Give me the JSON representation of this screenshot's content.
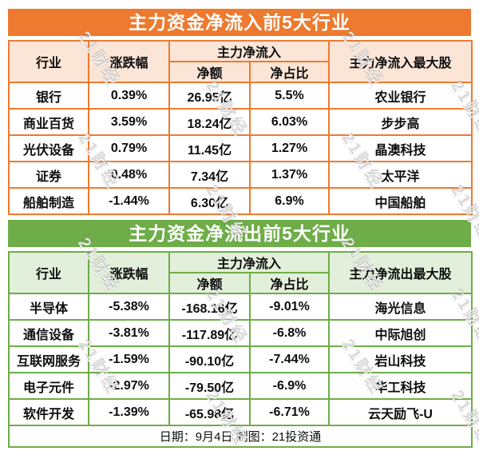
{
  "watermark": {
    "text": "21财经"
  },
  "footer": {
    "text": "日期：9月4日 制图：21投资通"
  },
  "colors": {
    "inflow_accent": "#ED7A2E",
    "inflow_header_fill": "#FBE5D6",
    "outflow_accent": "#6EAD48",
    "outflow_header_fill": "#E2EFDA",
    "title_text": "#FFFFFF",
    "body_text": "#0D0D0D"
  },
  "chart_data": [
    {
      "type": "table",
      "title": "主力资金净流入前5大行业",
      "headers": {
        "industry": "行业",
        "change": "涨跌幅",
        "group": "主力净流入",
        "net_amount": "净额",
        "net_ratio": "净占比",
        "top_stock": "主力净流入最大股"
      },
      "rows": [
        {
          "industry": "银行",
          "change": "0.39%",
          "net_amount": "26.95亿",
          "net_ratio": "5.5%",
          "top_stock": "农业银行"
        },
        {
          "industry": "商业百货",
          "change": "3.59%",
          "net_amount": "18.24亿",
          "net_ratio": "6.03%",
          "top_stock": "步步高"
        },
        {
          "industry": "光伏设备",
          "change": "0.79%",
          "net_amount": "11.45亿",
          "net_ratio": "1.27%",
          "top_stock": "晶澳科技"
        },
        {
          "industry": "证券",
          "change": "0.48%",
          "net_amount": "7.34亿",
          "net_ratio": "1.37%",
          "top_stock": "太平洋"
        },
        {
          "industry": "船舶制造",
          "change": "-1.44%",
          "net_amount": "6.30亿",
          "net_ratio": "6.9%",
          "top_stock": "中国船舶"
        }
      ]
    },
    {
      "type": "table",
      "title": "主力资金净流出前5大行业",
      "headers": {
        "industry": "行业",
        "change": "涨跌幅",
        "group": "主力净流入",
        "net_amount": "净额",
        "net_ratio": "净占比",
        "top_stock": "主力净流出最大股"
      },
      "rows": [
        {
          "industry": "半导体",
          "change": "-5.38%",
          "net_amount": "-168.16亿",
          "net_ratio": "-9.01%",
          "top_stock": "海光信息"
        },
        {
          "industry": "通信设备",
          "change": "-3.81%",
          "net_amount": "-117.89亿",
          "net_ratio": "-6.8%",
          "top_stock": "中际旭创"
        },
        {
          "industry": "互联网服务",
          "change": "-1.59%",
          "net_amount": "-90.10亿",
          "net_ratio": "-7.44%",
          "top_stock": "岩山科技"
        },
        {
          "industry": "电子元件",
          "change": "-2.97%",
          "net_amount": "-79.50亿",
          "net_ratio": "-6.9%",
          "top_stock": "华工科技"
        },
        {
          "industry": "软件开发",
          "change": "-1.39%",
          "net_amount": "-65.98亿",
          "net_ratio": "-6.71%",
          "top_stock": "云天励飞-U"
        }
      ]
    }
  ]
}
